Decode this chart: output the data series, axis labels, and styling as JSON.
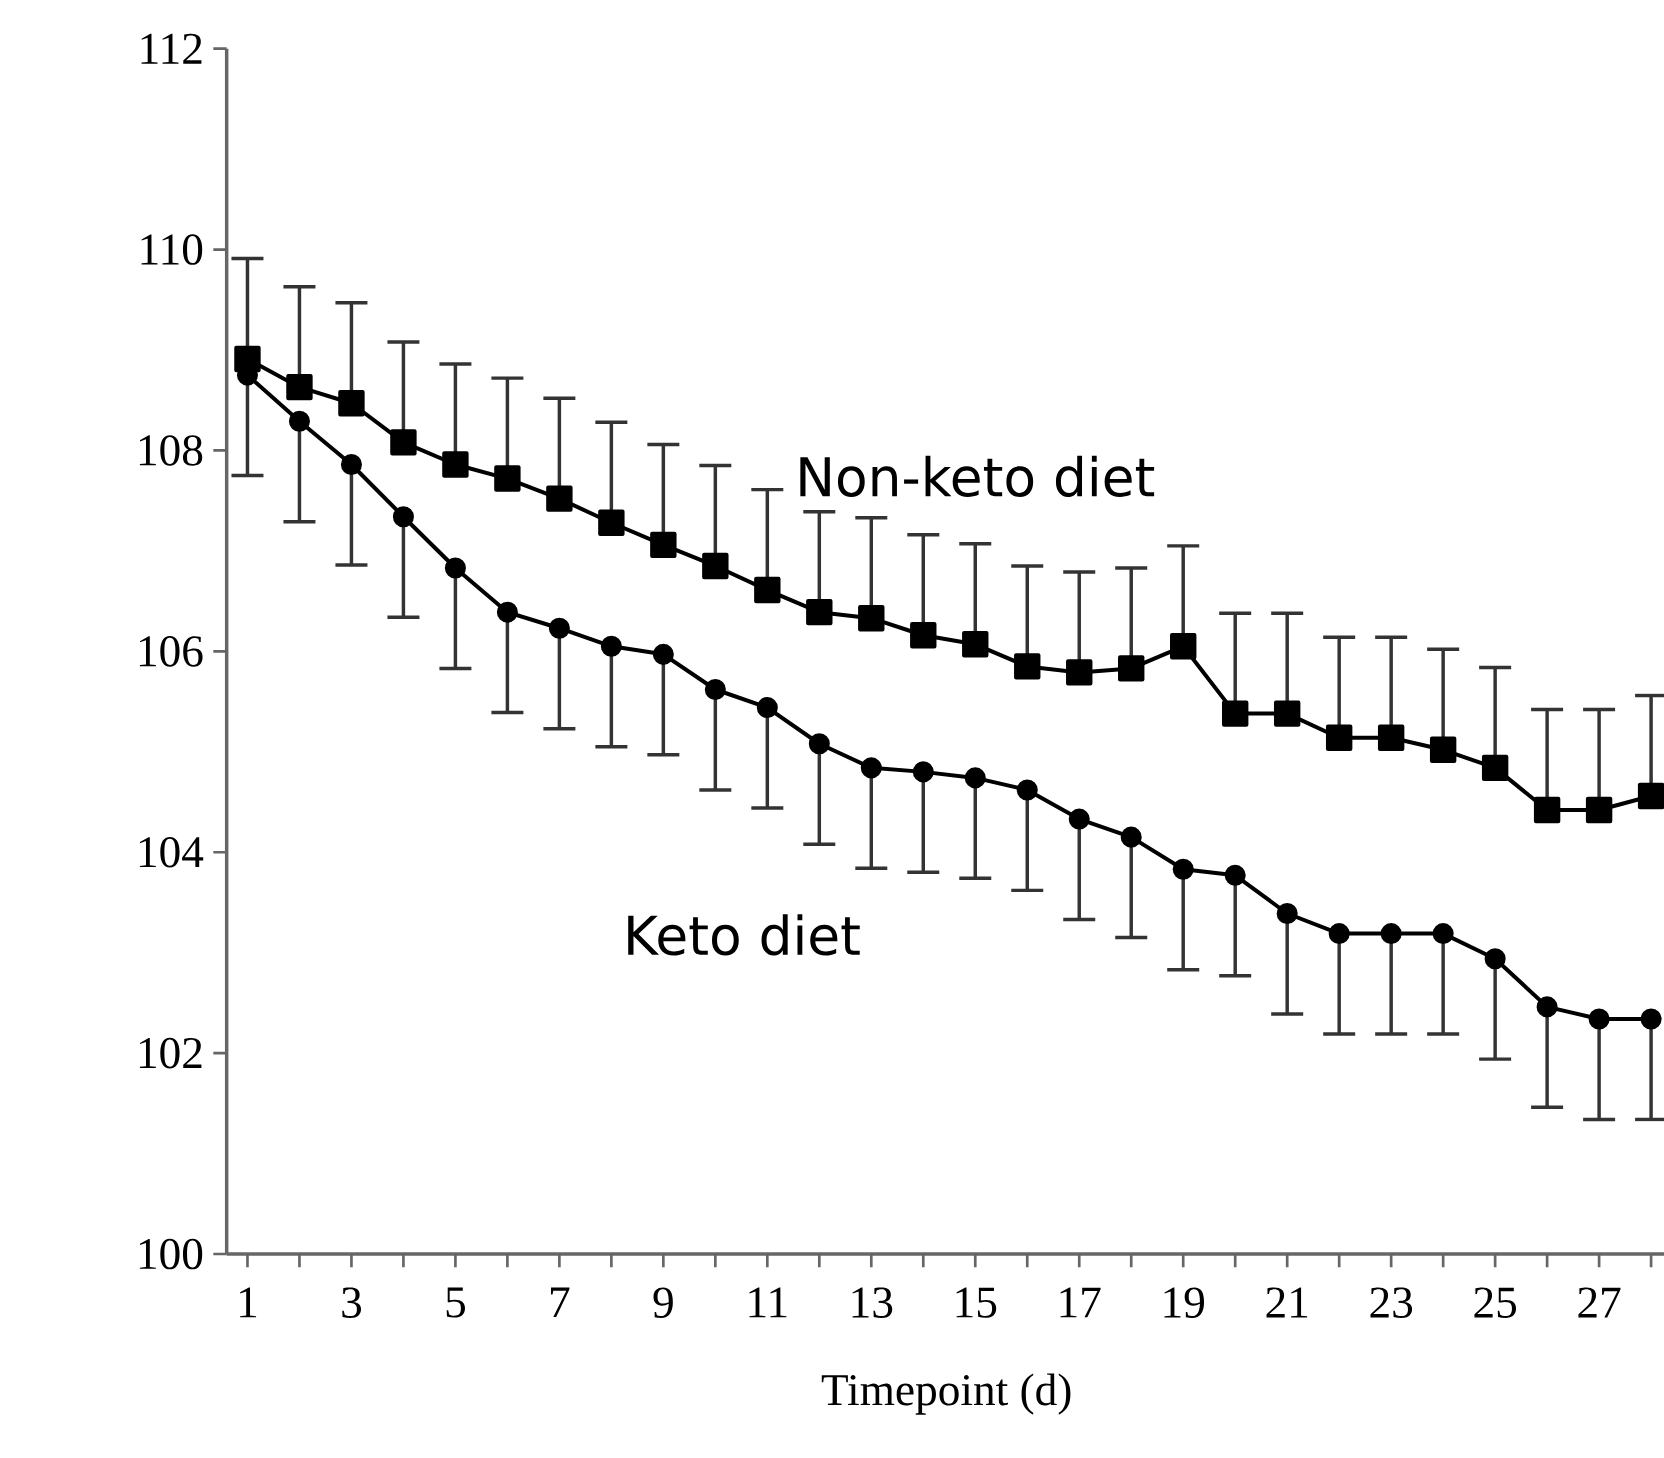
{
  "chart_data": {
    "type": "line",
    "xlabel": "Timepoint (d)",
    "x": [
      1,
      2,
      3,
      4,
      5,
      6,
      7,
      8,
      9,
      10,
      11,
      12,
      13,
      14,
      15,
      16,
      17,
      18,
      19,
      20,
      21,
      22,
      23,
      24,
      25,
      26,
      27,
      28
    ],
    "xlim": [
      0.6,
      28.3
    ],
    "xticks": [
      1,
      {
        "value": 2,
        "label": null
      },
      3,
      {
        "value": 4,
        "label": null
      },
      5,
      {
        "value": 6,
        "label": null
      },
      7,
      {
        "value": 8,
        "label": null
      },
      9,
      {
        "value": 10,
        "label": null
      },
      11,
      {
        "value": 12,
        "label": null
      },
      13,
      {
        "value": 14,
        "label": null
      },
      15,
      {
        "value": 16,
        "label": null
      },
      17,
      {
        "value": 18,
        "label": null
      },
      19,
      {
        "value": 20,
        "label": null
      },
      21,
      {
        "value": 22,
        "label": null
      },
      23,
      {
        "value": 24,
        "label": null
      },
      25,
      {
        "value": 26,
        "label": null
      },
      27,
      {
        "value": 28,
        "label": null
      }
    ],
    "ylim": [
      100,
      112
    ],
    "yticks": [
      100,
      102,
      104,
      106,
      108,
      110,
      112
    ],
    "grid": false,
    "series": [
      {
        "name": "Non-keto diet",
        "color": "#000000",
        "marker": "square",
        "line_style": "solid",
        "values": [
          108.91,
          108.63,
          108.47,
          108.08,
          107.86,
          107.72,
          107.52,
          107.28,
          107.06,
          106.85,
          106.61,
          106.39,
          106.33,
          106.16,
          106.07,
          105.85,
          105.79,
          105.83,
          106.05,
          105.38,
          105.38,
          105.14,
          105.14,
          105.02,
          104.84,
          104.42,
          104.42,
          104.56
        ],
        "errors": [
          [
            108.91,
            109.91
          ],
          [
            108.63,
            109.63
          ],
          [
            108.47,
            109.47
          ],
          [
            108.08,
            109.08
          ],
          [
            107.86,
            108.86
          ],
          [
            107.72,
            108.72
          ],
          [
            107.52,
            108.52
          ],
          [
            107.28,
            108.28
          ],
          [
            107.06,
            108.06
          ],
          [
            106.85,
            107.85
          ],
          [
            106.61,
            107.61
          ],
          [
            106.39,
            107.39
          ],
          [
            106.33,
            107.33
          ],
          [
            106.16,
            107.16
          ],
          [
            106.07,
            107.07
          ],
          [
            105.85,
            106.85
          ],
          [
            105.79,
            106.79
          ],
          [
            105.83,
            106.83
          ],
          [
            106.05,
            107.05
          ],
          [
            105.38,
            106.38
          ],
          [
            105.38,
            106.38
          ],
          [
            105.14,
            106.14
          ],
          [
            105.14,
            106.14
          ],
          [
            105.02,
            106.02
          ],
          [
            104.84,
            105.84
          ],
          [
            104.42,
            105.42
          ],
          [
            104.42,
            105.42
          ],
          [
            104.56,
            105.56
          ]
        ]
      },
      {
        "name": "Keto diet",
        "color": "#000000",
        "marker": "circle",
        "line_style": "solid",
        "values": [
          108.75,
          108.29,
          107.86,
          107.34,
          106.83,
          106.39,
          106.23,
          106.05,
          105.97,
          105.62,
          105.44,
          105.08,
          104.84,
          104.8,
          104.74,
          104.62,
          104.33,
          104.15,
          103.83,
          103.77,
          103.39,
          103.19,
          103.19,
          103.19,
          102.94,
          102.46,
          102.34,
          102.34
        ],
        "errors": [
          [
            107.75,
            108.75
          ],
          [
            107.29,
            108.29
          ],
          [
            106.86,
            107.86
          ],
          [
            106.34,
            107.34
          ],
          [
            105.83,
            106.83
          ],
          [
            105.39,
            106.39
          ],
          [
            105.23,
            106.23
          ],
          [
            105.05,
            106.05
          ],
          [
            104.97,
            105.97
          ],
          [
            104.62,
            105.62
          ],
          [
            104.44,
            105.44
          ],
          [
            104.08,
            105.08
          ],
          [
            103.84,
            104.84
          ],
          [
            103.8,
            104.8
          ],
          [
            103.74,
            104.74
          ],
          [
            103.62,
            104.62
          ],
          [
            103.33,
            104.33
          ],
          [
            103.15,
            104.15
          ],
          [
            102.83,
            103.83
          ],
          [
            102.77,
            103.77
          ],
          [
            102.39,
            103.39
          ],
          [
            102.19,
            103.19
          ],
          [
            102.19,
            103.19
          ],
          [
            102.19,
            103.19
          ],
          [
            101.94,
            102.94
          ],
          [
            101.46,
            102.46
          ],
          [
            101.34,
            102.34
          ],
          [
            101.34,
            102.34
          ]
        ]
      }
    ]
  }
}
